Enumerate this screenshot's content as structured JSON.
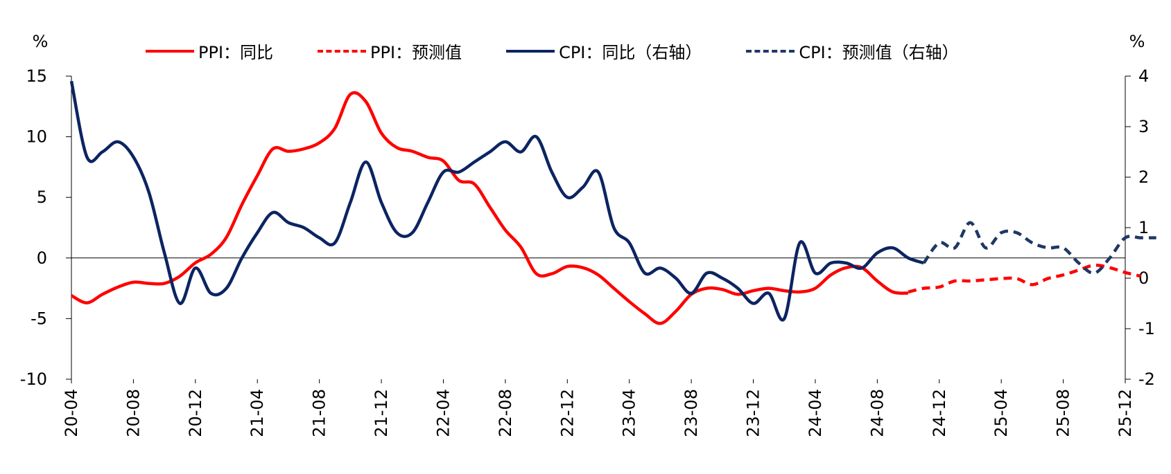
{
  "chart_data": {
    "type": "line",
    "left_axis": {
      "unit": "%",
      "ylim": [
        -10,
        15
      ],
      "ticks": [
        15,
        10,
        5,
        0,
        -5,
        -10
      ]
    },
    "right_axis": {
      "unit": "%",
      "ylim": [
        -2,
        4
      ],
      "ticks": [
        4,
        3,
        2,
        1,
        0,
        -1,
        -2
      ]
    },
    "x_start": "2020-04",
    "x_end": "2025-12",
    "x_tick_labels": [
      "20-04",
      "20-08",
      "20-12",
      "21-04",
      "21-08",
      "21-12",
      "22-04",
      "22-08",
      "22-12",
      "23-04",
      "23-08",
      "23-12",
      "24-04",
      "24-08",
      "24-12",
      "25-04",
      "25-08",
      "25-12"
    ],
    "series": [
      {
        "name": "PPI：同比",
        "axis": "left",
        "style": "solid",
        "color": "#ff0000",
        "start": "2020-04",
        "values": [
          -3.1,
          -3.7,
          -3.0,
          -2.4,
          -2.0,
          -2.1,
          -2.1,
          -1.5,
          -0.4,
          0.3,
          1.7,
          4.4,
          6.8,
          9.0,
          8.8,
          9.0,
          9.5,
          10.7,
          13.5,
          12.9,
          10.3,
          9.1,
          8.8,
          8.3,
          8.0,
          6.4,
          6.1,
          4.2,
          2.3,
          0.9,
          -1.3,
          -1.3,
          -0.7,
          -0.8,
          -1.4,
          -2.5,
          -3.6,
          -4.6,
          -5.4,
          -4.4,
          -3.0,
          -2.5,
          -2.6,
          -3.0,
          -2.7,
          -2.5,
          -2.7,
          -2.8,
          -2.5,
          -1.4,
          -0.8,
          -0.8,
          -1.9,
          -2.8,
          -2.9
        ]
      },
      {
        "name": "PPI：预测值",
        "axis": "left",
        "style": "dashed",
        "color": "#ff0000",
        "start": "2024-10",
        "values": [
          -2.8,
          -2.5,
          -2.4,
          -1.9,
          -1.9,
          -1.8,
          -1.7,
          -1.7,
          -2.2,
          -1.7,
          -1.4,
          -1.0,
          -0.6,
          -0.8,
          -1.2,
          -1.5
        ]
      },
      {
        "name": "CPI：同比（右轴）",
        "axis": "right",
        "style": "solid",
        "color": "#0c2461",
        "start": "2020-04",
        "values": [
          3.9,
          2.4,
          2.5,
          2.7,
          2.4,
          1.7,
          0.5,
          -0.5,
          0.2,
          -0.3,
          -0.2,
          0.4,
          0.9,
          1.3,
          1.1,
          1.0,
          0.8,
          0.7,
          1.5,
          2.3,
          1.5,
          0.9,
          0.9,
          1.5,
          2.1,
          2.1,
          2.3,
          2.5,
          2.7,
          2.5,
          2.8,
          2.1,
          1.6,
          1.8,
          2.1,
          1.0,
          0.7,
          0.1,
          0.2,
          0.0,
          -0.3,
          0.1,
          0.0,
          -0.2,
          -0.5,
          -0.3,
          -0.8,
          0.7,
          0.1,
          0.3,
          0.3,
          0.2,
          0.5,
          0.6,
          0.4,
          0.3
        ]
      },
      {
        "name": "CPI：预测值（右轴）",
        "axis": "right",
        "style": "dashed",
        "color": "#1f3864",
        "start": "2024-11",
        "values": [
          0.3,
          0.7,
          0.6,
          1.1,
          0.6,
          0.9,
          0.9,
          0.7,
          0.6,
          0.6,
          0.3,
          0.1,
          0.4,
          0.8,
          0.8,
          0.8
        ]
      }
    ]
  }
}
